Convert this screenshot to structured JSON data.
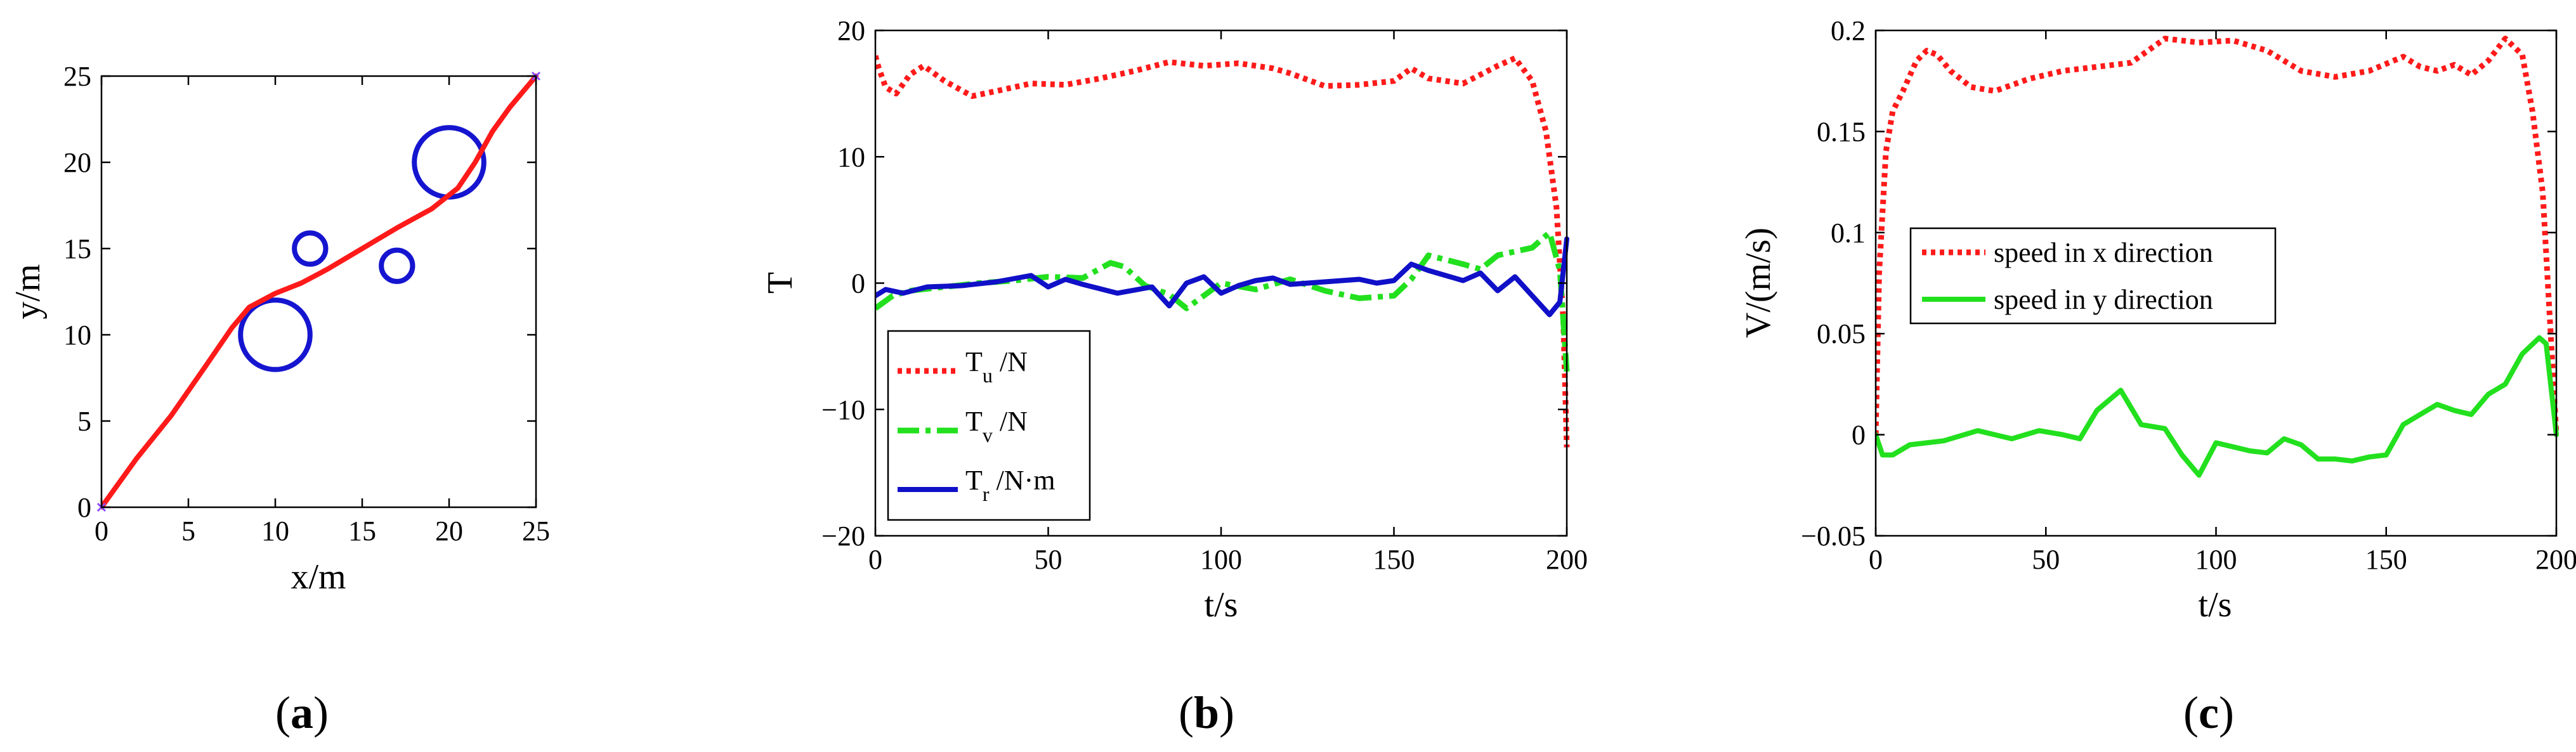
{
  "colors": {
    "red": "#ff1a1a",
    "green": "#22e01e",
    "blue": "#1010c8",
    "obstacle": "#1515d0",
    "marker": "#8a4cff"
  },
  "chart_data": [
    {
      "type": "line",
      "panel": "a",
      "caption": "a",
      "xlabel": "x/m",
      "ylabel": "y/m",
      "xlim": [
        0,
        25
      ],
      "ylim": [
        0,
        25
      ],
      "xticks": [
        0,
        5,
        10,
        15,
        20,
        25
      ],
      "yticks": [
        0,
        5,
        10,
        15,
        20,
        25
      ],
      "series": [
        {
          "name": "path",
          "color": "red",
          "style": "solid",
          "x": [
            0,
            2,
            4,
            6,
            7.5,
            8.5,
            10,
            11.5,
            13,
            15,
            17,
            19,
            20.5,
            21.5,
            22.5,
            23.5,
            25
          ],
          "y": [
            0,
            2.8,
            5.3,
            8.2,
            10.4,
            11.6,
            12.4,
            13,
            13.8,
            15,
            16.2,
            17.3,
            18.5,
            20,
            21.8,
            23.2,
            25
          ]
        }
      ],
      "obstacles": [
        {
          "cx": 10,
          "cy": 10,
          "r": 2
        },
        {
          "cx": 12,
          "cy": 15,
          "r": 0.9
        },
        {
          "cx": 17,
          "cy": 14,
          "r": 0.9
        },
        {
          "cx": 20,
          "cy": 20,
          "r": 2
        }
      ],
      "markers": [
        {
          "x": 0,
          "y": 0
        },
        {
          "x": 25,
          "y": 25
        }
      ]
    },
    {
      "type": "line",
      "panel": "b",
      "caption": "b",
      "xlabel": "t/s",
      "ylabel": "T",
      "xlim": [
        0,
        200
      ],
      "ylim": [
        -20,
        20
      ],
      "xticks": [
        0,
        50,
        100,
        150,
        200
      ],
      "yticks": [
        -20,
        -10,
        0,
        10,
        20
      ],
      "series": [
        {
          "name": "Tu",
          "sub": "u",
          "unit": " /N",
          "color": "red",
          "style": "dotted",
          "x": [
            0,
            1,
            3,
            6,
            10,
            14,
            20,
            28,
            35,
            45,
            55,
            65,
            75,
            85,
            95,
            105,
            115,
            120,
            130,
            140,
            150,
            155,
            160,
            170,
            180,
            185,
            190,
            194,
            197,
            199,
            200
          ],
          "y": [
            18,
            17,
            15.5,
            15,
            16.5,
            17.2,
            16,
            14.8,
            15.2,
            15.8,
            15.7,
            16.2,
            16.8,
            17.5,
            17.2,
            17.4,
            17,
            16.6,
            15.6,
            15.7,
            16,
            17,
            16.2,
            15.8,
            17.2,
            17.8,
            16,
            12,
            6,
            -3,
            -13
          ]
        },
        {
          "name": "Tv",
          "sub": "v",
          "unit": " /N",
          "color": "green",
          "style": "dashdot",
          "x": [
            0,
            5,
            10,
            20,
            30,
            40,
            50,
            60,
            68,
            72,
            78,
            85,
            90,
            100,
            110,
            120,
            130,
            140,
            150,
            155,
            160,
            170,
            175,
            180,
            190,
            195,
            198,
            200
          ],
          "y": [
            -2,
            -1,
            -0.6,
            -0.3,
            0,
            0.2,
            0.5,
            0.4,
            1.6,
            1.3,
            -0.2,
            -0.9,
            -2,
            0,
            -0.5,
            0.3,
            -0.6,
            -1.2,
            -1,
            0.3,
            2.2,
            1.5,
            1.1,
            2.2,
            2.8,
            4,
            1,
            -7
          ]
        },
        {
          "name": "Tr",
          "sub": "r",
          "unit": " /N·m",
          "color": "blue",
          "style": "solid",
          "x": [
            0,
            3,
            8,
            15,
            25,
            35,
            45,
            50,
            55,
            60,
            70,
            80,
            85,
            90,
            95,
            100,
            105,
            110,
            115,
            120,
            130,
            140,
            145,
            150,
            155,
            160,
            170,
            175,
            180,
            185,
            190,
            195,
            198,
            200
          ],
          "y": [
            -1,
            -0.5,
            -0.8,
            -0.3,
            -0.2,
            0.1,
            0.6,
            -0.3,
            0.3,
            -0.1,
            -0.8,
            -0.3,
            -1.8,
            0,
            0.5,
            -0.8,
            -0.2,
            0.2,
            0.4,
            -0.1,
            0.1,
            0.3,
            0,
            0.2,
            1.5,
            1,
            0.2,
            0.8,
            -0.6,
            0.5,
            -1,
            -2.5,
            -1.5,
            3.5
          ]
        }
      ]
    },
    {
      "type": "line",
      "panel": "c",
      "caption": "c",
      "xlabel": "t/s",
      "ylabel": "V/(m/s)",
      "xlim": [
        0,
        200
      ],
      "ylim": [
        -0.05,
        0.2
      ],
      "xticks": [
        0,
        50,
        100,
        150,
        200
      ],
      "yticks": [
        -0.05,
        0,
        0.05,
        0.1,
        0.15,
        0.2
      ],
      "ytick_labels": [
        "−0.05",
        "0",
        "0.05",
        "0.1",
        "0.15",
        "0.2"
      ],
      "series": [
        {
          "name": "speed in x direction",
          "color": "red",
          "style": "dotted",
          "x": [
            0,
            1,
            3,
            5,
            8,
            12,
            15,
            18,
            22,
            28,
            35,
            45,
            55,
            65,
            75,
            85,
            95,
            105,
            115,
            125,
            135,
            145,
            155,
            160,
            165,
            170,
            175,
            180,
            185,
            190,
            193,
            196,
            198,
            200
          ],
          "y": [
            0,
            0.08,
            0.14,
            0.16,
            0.17,
            0.185,
            0.19,
            0.188,
            0.18,
            0.172,
            0.17,
            0.176,
            0.18,
            0.182,
            0.184,
            0.196,
            0.194,
            0.195,
            0.19,
            0.18,
            0.177,
            0.18,
            0.187,
            0.182,
            0.18,
            0.183,
            0.178,
            0.185,
            0.196,
            0.188,
            0.16,
            0.12,
            0.06,
            0
          ]
        },
        {
          "name": "speed in y direction",
          "color": "green",
          "style": "solid",
          "x": [
            0,
            2,
            5,
            10,
            20,
            30,
            40,
            48,
            55,
            60,
            65,
            72,
            78,
            85,
            90,
            95,
            100,
            105,
            110,
            115,
            120,
            125,
            130,
            135,
            140,
            145,
            150,
            155,
            160,
            165,
            170,
            175,
            180,
            185,
            190,
            195,
            197,
            200
          ],
          "y": [
            0,
            -0.01,
            -0.01,
            -0.005,
            -0.003,
            0.002,
            -0.002,
            0.002,
            0,
            -0.002,
            0.012,
            0.022,
            0.005,
            0.003,
            -0.01,
            -0.02,
            -0.004,
            -0.006,
            -0.008,
            -0.009,
            -0.002,
            -0.005,
            -0.012,
            -0.012,
            -0.013,
            -0.011,
            -0.01,
            0.005,
            0.01,
            0.015,
            0.012,
            0.01,
            0.02,
            0.025,
            0.04,
            0.048,
            0.045,
            0
          ]
        }
      ]
    }
  ]
}
